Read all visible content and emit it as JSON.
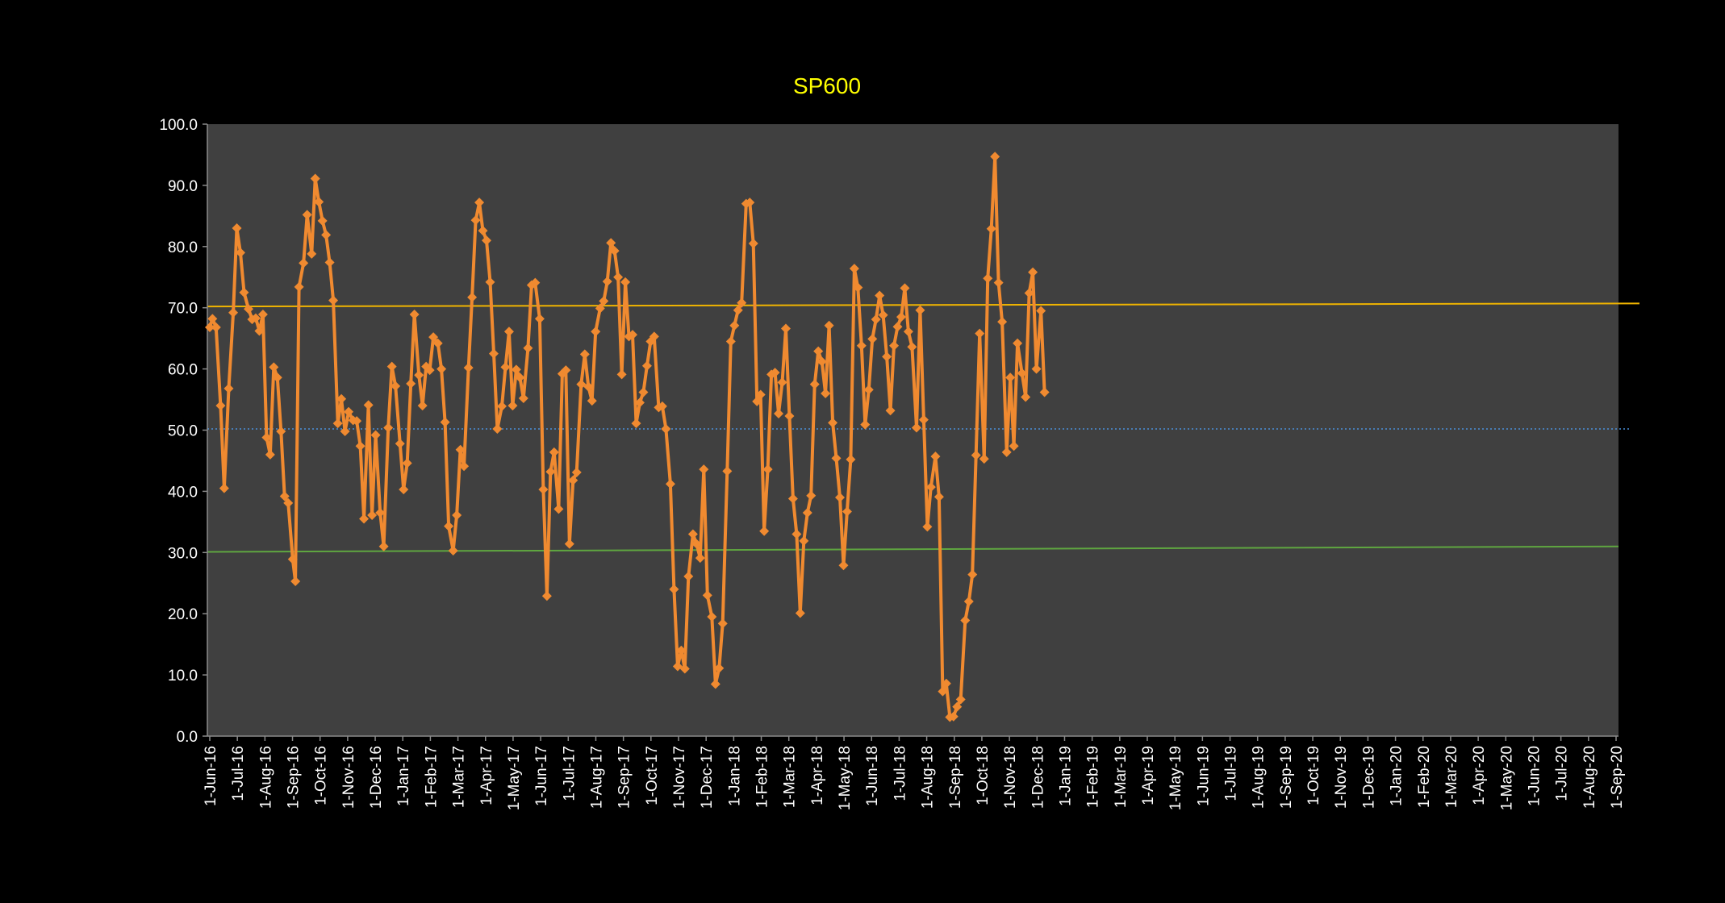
{
  "chart_data": {
    "type": "line",
    "title": "SP600",
    "xlabel": "",
    "ylabel": "",
    "ylim": [
      0,
      100
    ],
    "grid": false,
    "legend": "none",
    "ytick_labels": [
      "0.0",
      "10.0",
      "20.0",
      "30.0",
      "40.0",
      "50.0",
      "60.0",
      "70.0",
      "80.0",
      "90.0",
      "100.0"
    ],
    "x_tick_labels": [
      "1-Jun-16",
      "1-Jul-16",
      "1-Aug-16",
      "1-Sep-16",
      "1-Oct-16",
      "1-Nov-16",
      "1-Dec-16",
      "1-Jan-17",
      "1-Feb-17",
      "1-Mar-17",
      "1-Apr-17",
      "1-May-17",
      "1-Jun-17",
      "1-Jul-17",
      "1-Aug-17",
      "1-Sep-17",
      "1-Oct-17",
      "1-Nov-17",
      "1-Dec-17",
      "1-Jan-18",
      "1-Feb-18",
      "1-Mar-18",
      "1-Apr-18",
      "1-May-18",
      "1-Jun-18",
      "1-Jul-18",
      "1-Aug-18",
      "1-Sep-18",
      "1-Oct-18",
      "1-Nov-18",
      "1-Dec-18",
      "1-Jan-19",
      "1-Feb-19",
      "1-Mar-19",
      "1-Apr-19",
      "1-May-19",
      "1-Jun-19",
      "1-Jul-19",
      "1-Aug-19",
      "1-Sep-19",
      "1-Oct-19",
      "1-Nov-19",
      "1-Dec-19",
      "1-Jan-20",
      "1-Feb-20",
      "1-Mar-20",
      "1-Apr-20",
      "1-May-20",
      "1-Jun-20",
      "1-Jul-20",
      "1-Aug-20",
      "1-Sep-20"
    ],
    "x_start": "2016-06-01",
    "x_end": "2020-09-08",
    "colors": {
      "background": "#000000",
      "plot_area": "#404040",
      "series": "#f08a30",
      "upper_line": "#f0b400",
      "lower_line": "#5fa640",
      "mid_line": "#4a90d9",
      "axis_text": "#ffffff",
      "title": "#ffff00"
    },
    "series": [
      {
        "values": [
          [
            "2016-06-01",
            66.8
          ],
          [
            "2016-06-04",
            68.2
          ],
          [
            "2016-06-08",
            66.8
          ],
          [
            "2016-06-13",
            54.0
          ],
          [
            "2016-06-17",
            40.5
          ],
          [
            "2016-06-22",
            56.8
          ],
          [
            "2016-06-27",
            69.2
          ],
          [
            "2016-07-01",
            83.0
          ],
          [
            "2016-07-05",
            79.0
          ],
          [
            "2016-07-09",
            72.5
          ],
          [
            "2016-07-14",
            69.8
          ],
          [
            "2016-07-18",
            68.1
          ],
          [
            "2016-07-22",
            68.3
          ],
          [
            "2016-07-26",
            66.2
          ],
          [
            "2016-07-30",
            68.9
          ],
          [
            "2016-08-03",
            48.8
          ],
          [
            "2016-08-07",
            46.0
          ],
          [
            "2016-08-11",
            60.3
          ],
          [
            "2016-08-15",
            58.6
          ],
          [
            "2016-08-19",
            49.8
          ],
          [
            "2016-08-23",
            39.2
          ],
          [
            "2016-08-27",
            38.1
          ],
          [
            "2016-09-01",
            28.9
          ],
          [
            "2016-09-04",
            25.3
          ],
          [
            "2016-09-08",
            73.4
          ],
          [
            "2016-09-13",
            77.3
          ],
          [
            "2016-09-17",
            85.2
          ],
          [
            "2016-09-22",
            78.8
          ],
          [
            "2016-09-26",
            91.1
          ],
          [
            "2016-09-30",
            87.3
          ],
          [
            "2016-10-04",
            84.2
          ],
          [
            "2016-10-08",
            81.9
          ],
          [
            "2016-10-12",
            77.4
          ],
          [
            "2016-10-16",
            71.2
          ],
          [
            "2016-10-21",
            51.1
          ],
          [
            "2016-10-25",
            55.1
          ],
          [
            "2016-10-29",
            49.8
          ],
          [
            "2016-11-02",
            53.0
          ],
          [
            "2016-11-07",
            51.6
          ],
          [
            "2016-11-11",
            51.5
          ],
          [
            "2016-11-15",
            47.4
          ],
          [
            "2016-11-19",
            35.5
          ],
          [
            "2016-11-24",
            54.1
          ],
          [
            "2016-11-28",
            36.1
          ],
          [
            "2016-12-02",
            49.2
          ],
          [
            "2016-12-07",
            36.5
          ],
          [
            "2016-12-11",
            31.0
          ],
          [
            "2016-12-16",
            50.4
          ],
          [
            "2016-12-20",
            60.4
          ],
          [
            "2016-12-24",
            57.2
          ],
          [
            "2016-12-29",
            47.8
          ],
          [
            "2017-01-02",
            40.3
          ],
          [
            "2017-01-06",
            44.6
          ],
          [
            "2017-01-10",
            57.6
          ],
          [
            "2017-01-14",
            68.9
          ],
          [
            "2017-01-19",
            59.0
          ],
          [
            "2017-01-23",
            54.0
          ],
          [
            "2017-01-27",
            60.4
          ],
          [
            "2017-01-31",
            59.8
          ],
          [
            "2017-02-04",
            65.2
          ],
          [
            "2017-02-09",
            64.2
          ],
          [
            "2017-02-13",
            60.0
          ],
          [
            "2017-02-17",
            51.3
          ],
          [
            "2017-02-21",
            34.3
          ],
          [
            "2017-02-26",
            30.3
          ],
          [
            "2017-03-02",
            36.1
          ],
          [
            "2017-03-06",
            46.8
          ],
          [
            "2017-03-10",
            44.1
          ],
          [
            "2017-03-15",
            60.2
          ],
          [
            "2017-03-19",
            71.7
          ],
          [
            "2017-03-23",
            84.3
          ],
          [
            "2017-03-27",
            87.2
          ],
          [
            "2017-03-31",
            82.6
          ],
          [
            "2017-04-04",
            81.0
          ],
          [
            "2017-04-08",
            74.2
          ],
          [
            "2017-04-12",
            62.5
          ],
          [
            "2017-04-16",
            50.2
          ],
          [
            "2017-04-21",
            53.9
          ],
          [
            "2017-04-25",
            60.3
          ],
          [
            "2017-04-29",
            66.1
          ],
          [
            "2017-05-03",
            54.0
          ],
          [
            "2017-05-07",
            59.9
          ],
          [
            "2017-05-11",
            58.6
          ],
          [
            "2017-05-15",
            55.2
          ],
          [
            "2017-05-20",
            63.4
          ],
          [
            "2017-05-24",
            73.7
          ],
          [
            "2017-05-28",
            74.1
          ],
          [
            "2017-06-02",
            68.2
          ],
          [
            "2017-06-06",
            40.3
          ],
          [
            "2017-06-10",
            22.9
          ],
          [
            "2017-06-14",
            43.2
          ],
          [
            "2017-06-18",
            46.4
          ],
          [
            "2017-06-23",
            37.1
          ],
          [
            "2017-06-27",
            59.2
          ],
          [
            "2017-07-01",
            59.8
          ],
          [
            "2017-07-05",
            31.4
          ],
          [
            "2017-07-09",
            41.8
          ],
          [
            "2017-07-13",
            43.1
          ],
          [
            "2017-07-18",
            57.5
          ],
          [
            "2017-07-22",
            62.4
          ],
          [
            "2017-07-26",
            57.1
          ],
          [
            "2017-07-30",
            54.8
          ],
          [
            "2017-08-03",
            66.1
          ],
          [
            "2017-08-08",
            69.9
          ],
          [
            "2017-08-12",
            71.1
          ],
          [
            "2017-08-16",
            74.3
          ],
          [
            "2017-08-20",
            80.6
          ],
          [
            "2017-08-24",
            79.3
          ],
          [
            "2017-08-28",
            75.0
          ],
          [
            "2017-09-01",
            59.1
          ],
          [
            "2017-09-05",
            74.2
          ],
          [
            "2017-09-09",
            65.3
          ],
          [
            "2017-09-13",
            65.6
          ],
          [
            "2017-09-17",
            51.1
          ],
          [
            "2017-09-21",
            54.5
          ],
          [
            "2017-09-25",
            56.2
          ],
          [
            "2017-09-29",
            60.5
          ],
          [
            "2017-10-03",
            64.5
          ],
          [
            "2017-10-07",
            65.3
          ],
          [
            "2017-10-12",
            53.7
          ],
          [
            "2017-10-16",
            53.9
          ],
          [
            "2017-10-20",
            50.2
          ],
          [
            "2017-10-25",
            41.2
          ],
          [
            "2017-10-29",
            24.0
          ],
          [
            "2017-11-02",
            11.4
          ],
          [
            "2017-11-06",
            14.0
          ],
          [
            "2017-11-10",
            11.0
          ],
          [
            "2017-11-14",
            26.1
          ],
          [
            "2017-11-19",
            33.0
          ],
          [
            "2017-11-23",
            31.4
          ],
          [
            "2017-11-27",
            29.1
          ],
          [
            "2017-12-01",
            43.6
          ],
          [
            "2017-12-05",
            23.0
          ],
          [
            "2017-12-10",
            19.5
          ],
          [
            "2017-12-14",
            8.5
          ],
          [
            "2017-12-18",
            11.1
          ],
          [
            "2017-12-22",
            18.4
          ],
          [
            "2017-12-27",
            43.3
          ],
          [
            "2017-12-31",
            64.5
          ],
          [
            "2018-01-04",
            67.1
          ],
          [
            "2018-01-08",
            69.6
          ],
          [
            "2018-01-12",
            70.8
          ],
          [
            "2018-01-17",
            87.0
          ],
          [
            "2018-01-21",
            87.2
          ],
          [
            "2018-01-25",
            80.5
          ],
          [
            "2018-01-29",
            54.7
          ],
          [
            "2018-02-02",
            55.8
          ],
          [
            "2018-02-06",
            33.5
          ],
          [
            "2018-02-10",
            43.6
          ],
          [
            "2018-02-14",
            59.1
          ],
          [
            "2018-02-18",
            59.4
          ],
          [
            "2018-02-22",
            52.7
          ],
          [
            "2018-02-26",
            57.8
          ],
          [
            "2018-03-02",
            66.6
          ],
          [
            "2018-03-06",
            52.3
          ],
          [
            "2018-03-10",
            38.8
          ],
          [
            "2018-03-14",
            33.0
          ],
          [
            "2018-03-18",
            20.1
          ],
          [
            "2018-03-22",
            31.9
          ],
          [
            "2018-03-26",
            36.5
          ],
          [
            "2018-03-30",
            39.3
          ],
          [
            "2018-04-03",
            57.5
          ],
          [
            "2018-04-07",
            62.9
          ],
          [
            "2018-04-11",
            61.2
          ],
          [
            "2018-04-15",
            56.0
          ],
          [
            "2018-04-19",
            67.1
          ],
          [
            "2018-04-23",
            51.2
          ],
          [
            "2018-04-27",
            45.4
          ],
          [
            "2018-05-01",
            39.0
          ],
          [
            "2018-05-05",
            27.9
          ],
          [
            "2018-05-09",
            36.7
          ],
          [
            "2018-05-13",
            45.2
          ],
          [
            "2018-05-17",
            76.4
          ],
          [
            "2018-05-21",
            73.3
          ],
          [
            "2018-05-25",
            63.8
          ],
          [
            "2018-05-29",
            50.9
          ],
          [
            "2018-06-02",
            56.6
          ],
          [
            "2018-06-06",
            64.9
          ],
          [
            "2018-06-10",
            68.1
          ],
          [
            "2018-06-14",
            72.0
          ],
          [
            "2018-06-18",
            68.8
          ],
          [
            "2018-06-22",
            62.0
          ],
          [
            "2018-06-26",
            53.2
          ],
          [
            "2018-06-30",
            63.8
          ],
          [
            "2018-07-04",
            66.9
          ],
          [
            "2018-07-08",
            68.5
          ],
          [
            "2018-07-12",
            73.2
          ],
          [
            "2018-07-16",
            66.1
          ],
          [
            "2018-07-20",
            63.6
          ],
          [
            "2018-07-25",
            50.4
          ],
          [
            "2018-07-29",
            69.6
          ],
          [
            "2018-08-02",
            51.7
          ],
          [
            "2018-08-06",
            34.2
          ],
          [
            "2018-08-10",
            40.7
          ],
          [
            "2018-08-15",
            45.7
          ],
          [
            "2018-08-19",
            39.1
          ],
          [
            "2018-08-23",
            7.3
          ],
          [
            "2018-08-27",
            8.6
          ],
          [
            "2018-08-31",
            3.1
          ],
          [
            "2018-09-04",
            3.2
          ],
          [
            "2018-09-08",
            4.8
          ],
          [
            "2018-09-12",
            6.0
          ],
          [
            "2018-09-17",
            18.9
          ],
          [
            "2018-09-21",
            22.0
          ],
          [
            "2018-09-25",
            26.4
          ],
          [
            "2018-09-29",
            45.9
          ],
          [
            "2018-10-03",
            65.8
          ],
          [
            "2018-10-08",
            45.3
          ],
          [
            "2018-10-12",
            74.8
          ],
          [
            "2018-10-16",
            82.9
          ],
          [
            "2018-10-20",
            94.7
          ],
          [
            "2018-10-24",
            74.1
          ],
          [
            "2018-10-28",
            67.7
          ],
          [
            "2018-11-02",
            46.4
          ],
          [
            "2018-11-06",
            58.6
          ],
          [
            "2018-11-10",
            47.4
          ],
          [
            "2018-11-14",
            64.2
          ],
          [
            "2018-11-19",
            59.3
          ],
          [
            "2018-11-23",
            55.4
          ],
          [
            "2018-11-27",
            72.4
          ],
          [
            "2018-12-01",
            75.8
          ],
          [
            "2018-12-05",
            60.0
          ],
          [
            "2018-12-10",
            69.5
          ],
          [
            "2018-12-14",
            56.2
          ]
        ]
      }
    ]
  }
}
